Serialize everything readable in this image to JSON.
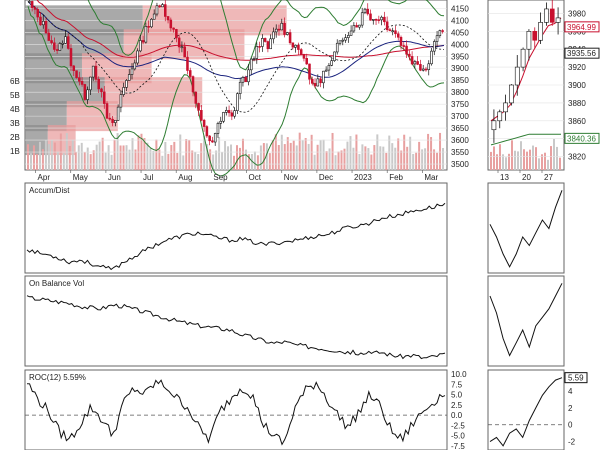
{
  "chart_data": {
    "type": "line",
    "main": {
      "xlabels": [
        "Apr",
        "May",
        "Jun",
        "Jul",
        "Aug",
        "Sep",
        "Oct",
        "Nov",
        "Dec",
        "2023",
        "Feb",
        "Mar"
      ],
      "ylabels": [
        "4150",
        "4100",
        "4050",
        "4000",
        "3950",
        "3900",
        "3850",
        "3800",
        "3750",
        "3700",
        "3650",
        "3600",
        "3550",
        "3500"
      ],
      "ylim": [
        3475,
        4185
      ],
      "volume_labels": [
        "6B",
        "5B",
        "4B",
        "3B",
        "2B",
        "1B"
      ],
      "price_series": [
        4170,
        4120,
        4080,
        4020,
        3960,
        4040,
        3920,
        3850,
        3780,
        3920,
        3820,
        3700,
        3650,
        3780,
        3860,
        3930,
        4010,
        4090,
        4140,
        4160,
        4100,
        4020,
        3980,
        3850,
        3720,
        3640,
        3590,
        3660,
        3720,
        3690,
        3840,
        3860,
        3950,
        4020,
        3980,
        4050,
        4080,
        4030,
        3990,
        3970,
        3850,
        3830,
        3880,
        3910,
        3990,
        4040,
        4070,
        4090,
        4150,
        4100,
        4120,
        4080,
        4060,
        4010,
        3960,
        3920,
        3900,
        3920,
        4050,
        4060
      ],
      "volume_by_price": [
        {
          "price": 4100,
          "fraction": 0.62
        },
        {
          "price": 4000,
          "fraction": 0.52
        },
        {
          "price": 3900,
          "fraction": 0.3
        },
        {
          "price": 3800,
          "fraction": 0.42
        },
        {
          "price": 3700,
          "fraction": 0.22
        },
        {
          "price": 3600,
          "fraction": 0.12
        }
      ]
    },
    "zoom": {
      "xlabels": [
        "13",
        "20",
        "27"
      ],
      "ylabels": [
        "3980",
        "3960",
        "3940",
        "3920",
        "3900",
        "3880",
        "3860",
        "3840",
        "3820"
      ],
      "ylim": [
        3805,
        3995
      ],
      "price_series": [
        3860,
        3870,
        3880,
        3900,
        3920,
        3940,
        3960,
        3950,
        3970,
        3985,
        3970,
        3975
      ],
      "badges": [
        {
          "label": "3964.99",
          "value": 3964.99,
          "color": "#c8102e"
        },
        {
          "label": "3935.56",
          "value": 3935.56,
          "color": "#1f1f1f"
        },
        {
          "label": "3840.36",
          "value": 3840.36,
          "color": "#2e7d32"
        }
      ]
    },
    "accum_dist": {
      "label": "Accum/Dist",
      "values": [
        0.3,
        0.25,
        0.22,
        0.18,
        0.12,
        0.15,
        0.1,
        0.05,
        0.02,
        0.12,
        0.2,
        0.28,
        0.36,
        0.42,
        0.46,
        0.5,
        0.52,
        0.48,
        0.45,
        0.42,
        0.44,
        0.4,
        0.36,
        0.38,
        0.4,
        0.42,
        0.45,
        0.48,
        0.5,
        0.55,
        0.6,
        0.62,
        0.66,
        0.72,
        0.75,
        0.78,
        0.82,
        0.85,
        0.88,
        0.92
      ],
      "zoom_values": [
        0.55,
        0.4,
        0.2,
        0.05,
        0.2,
        0.4,
        0.3,
        0.45,
        0.6,
        0.5,
        0.75,
        0.95
      ]
    },
    "obv": {
      "label": "On Balance Vol",
      "values": [
        0.9,
        0.88,
        0.86,
        0.84,
        0.82,
        0.78,
        0.76,
        0.75,
        0.8,
        0.78,
        0.74,
        0.7,
        0.66,
        0.62,
        0.58,
        0.55,
        0.52,
        0.5,
        0.48,
        0.46,
        0.4,
        0.36,
        0.32,
        0.28,
        0.3,
        0.26,
        0.24,
        0.22,
        0.2,
        0.18,
        0.16,
        0.15,
        0.14,
        0.16,
        0.12,
        0.1,
        0.12,
        0.08,
        0.1,
        0.14
      ],
      "zoom_values": [
        0.8,
        0.6,
        0.3,
        0.1,
        0.25,
        0.4,
        0.2,
        0.45,
        0.55,
        0.65,
        0.8,
        0.95
      ]
    },
    "roc": {
      "label": "ROC(12) 5.59%",
      "ylabels": [
        "10.0",
        "7.5",
        "5.0",
        "2.5",
        "0.0",
        "-2.5",
        "-5.0",
        "-7.5"
      ],
      "ylim": [
        -8.5,
        11
      ],
      "values": [
        8.0,
        4.0,
        1.0,
        -4.0,
        -6.0,
        -2.0,
        2.0,
        -1.0,
        -5.0,
        3.0,
        6.5,
        5.0,
        8.0,
        7.0,
        4.0,
        2.0,
        -3.0,
        -6.0,
        1.0,
        4.0,
        7.0,
        5.0,
        -2.0,
        -5.0,
        -7.0,
        2.0,
        6.0,
        8.0,
        4.0,
        0.0,
        -3.0,
        1.0,
        5.0,
        2.0,
        -4.0,
        -6.0,
        -2.0,
        1.0,
        3.5,
        5.6
      ],
      "zoom_ylabels": [
        "5.59",
        "4",
        "2",
        "0",
        "-2"
      ],
      "zoom_ylim": [
        -3,
        6.5
      ],
      "zoom_values": [
        -2.0,
        -1.5,
        -2.5,
        -1.0,
        -0.5,
        -1.5,
        0.5,
        2.0,
        3.5,
        4.5,
        5.3,
        5.59
      ]
    }
  }
}
